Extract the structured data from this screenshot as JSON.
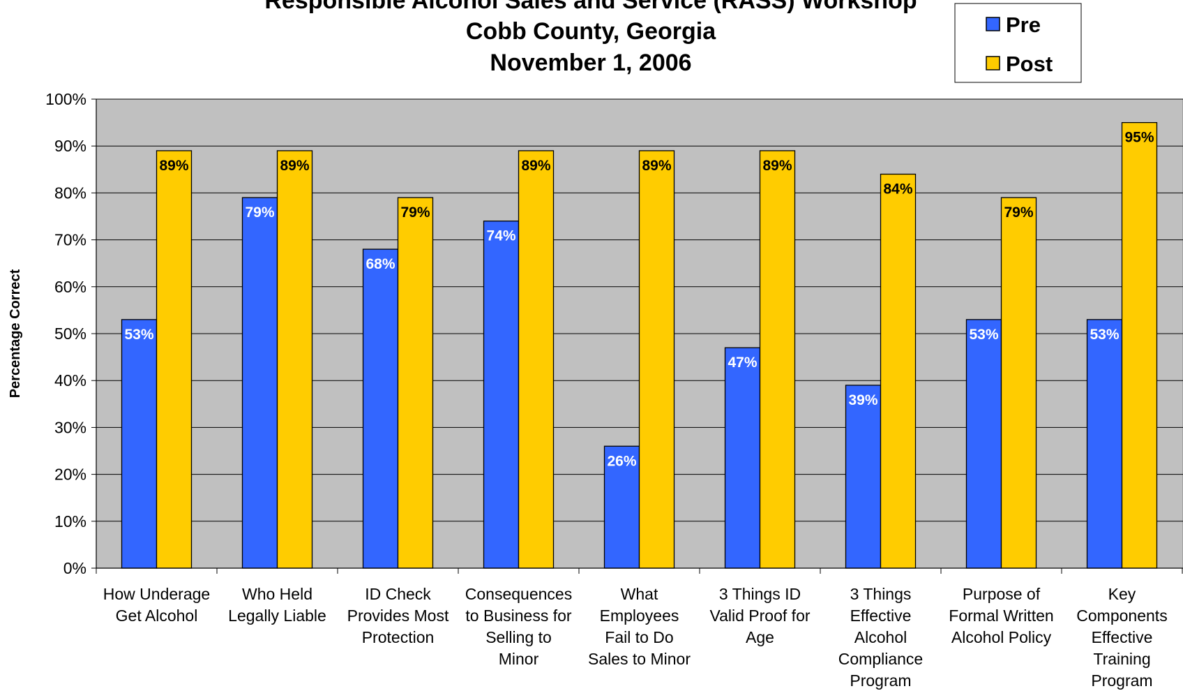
{
  "chart_data": {
    "type": "bar",
    "title_lines": [
      "Responsible Alcohol Sales and Service (RASS) Workshop",
      "Cobb County, Georgia",
      "November 1, 2006"
    ],
    "ylabel": "Percentage Correct",
    "xlabel": "",
    "ylim": [
      0,
      100
    ],
    "y_ticks": [
      "0%",
      "10%",
      "20%",
      "30%",
      "40%",
      "50%",
      "60%",
      "70%",
      "80%",
      "90%",
      "100%"
    ],
    "categories": [
      [
        "How Underage",
        "Get Alcohol"
      ],
      [
        "Who Held",
        "Legally Liable"
      ],
      [
        "ID Check",
        "Provides Most",
        "Protection"
      ],
      [
        "Consequences",
        "to Business for",
        "Selling to",
        "Minor"
      ],
      [
        "What",
        "Employees",
        "Fail to Do",
        "Sales to Minor"
      ],
      [
        "3 Things ID",
        "Valid Proof for",
        "Age"
      ],
      [
        "3 Things",
        "Effective",
        "Alcohol",
        "Compliance",
        "Program"
      ],
      [
        "Purpose of",
        "Formal Written",
        "Alcohol Policy"
      ],
      [
        "Key",
        "Components",
        "Effective",
        "Training",
        "Program"
      ]
    ],
    "series": [
      {
        "name": "Pre",
        "color": "#3366ff",
        "label_color": "#ffffff",
        "values": [
          53,
          79,
          68,
          74,
          26,
          47,
          39,
          53,
          53
        ],
        "labels": [
          "53%",
          "79%",
          "68%",
          "74%",
          "26%",
          "47%",
          "39%",
          "53%",
          "53%"
        ]
      },
      {
        "name": "Post",
        "color": "#ffcc00",
        "label_color": "#000000",
        "values": [
          89,
          89,
          79,
          89,
          89,
          89,
          84,
          79,
          95
        ],
        "labels": [
          "89%",
          "89%",
          "79%",
          "89%",
          "89%",
          "89%",
          "84%",
          "79%",
          "95%"
        ]
      }
    ],
    "grid": true,
    "plot_background": "#c0c0c0",
    "legend_position": "top-right"
  }
}
